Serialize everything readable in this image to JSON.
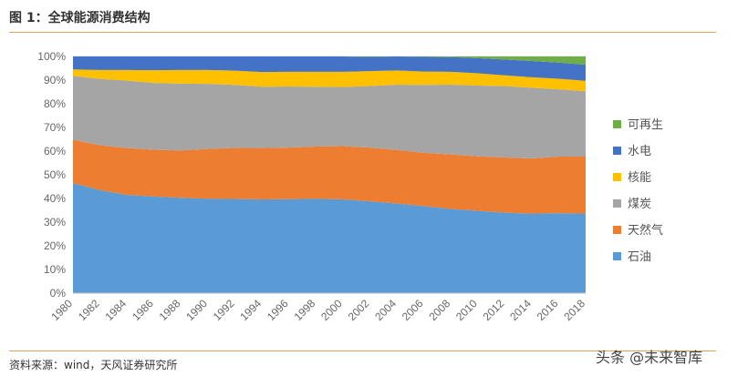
{
  "header": {
    "title": "图 1：全球能源消费结构"
  },
  "footer": {
    "source": "资料来源：wind，天风证券研究所",
    "watermark": "头条 @未来智库"
  },
  "chart_data": {
    "type": "area",
    "stacked": true,
    "percent": true,
    "x": [
      1980,
      1982,
      1984,
      1986,
      1988,
      1990,
      1992,
      1994,
      1996,
      1998,
      2000,
      2002,
      2004,
      2006,
      2008,
      2010,
      2012,
      2014,
      2016,
      2018
    ],
    "xtick_labels": [
      "1980",
      "1982",
      "1984",
      "1986",
      "1988",
      "1990",
      "1992",
      "1994",
      "1996",
      "1998",
      "2000",
      "2002",
      "2004",
      "2006",
      "2008",
      "2010",
      "2012",
      "2014",
      "2016",
      "2018"
    ],
    "ylim": [
      0,
      100
    ],
    "ytick_labels": [
      "0%",
      "10%",
      "20%",
      "30%",
      "40%",
      "50%",
      "60%",
      "70%",
      "80%",
      "90%",
      "100%"
    ],
    "grid": true,
    "legend_position": "right",
    "series": [
      {
        "name": "石油",
        "color": "#5b9bd5",
        "values": [
          46.5,
          43.5,
          41.5,
          40.8,
          40.3,
          39.9,
          39.8,
          39.6,
          39.7,
          39.9,
          39.6,
          38.8,
          37.9,
          36.8,
          35.6,
          34.8,
          34.0,
          33.6,
          33.8,
          33.6
        ]
      },
      {
        "name": "天然气",
        "color": "#ed7d31",
        "values": [
          18.3,
          19.0,
          19.8,
          19.8,
          20.0,
          21.0,
          21.6,
          21.7,
          21.8,
          22.0,
          22.5,
          22.7,
          22.6,
          22.5,
          23.0,
          23.0,
          23.3,
          23.3,
          23.9,
          24.1
        ]
      },
      {
        "name": "煤炭",
        "color": "#a5a5a5",
        "values": [
          27.0,
          28.0,
          28.5,
          28.2,
          28.2,
          27.5,
          26.6,
          25.9,
          25.8,
          25.3,
          25.0,
          26.0,
          27.6,
          28.7,
          29.5,
          29.9,
          30.2,
          29.9,
          28.4,
          27.6
        ]
      },
      {
        "name": "核能",
        "color": "#ffc000",
        "values": [
          2.7,
          3.8,
          4.5,
          5.4,
          5.8,
          5.9,
          6.0,
          6.2,
          6.2,
          6.3,
          6.4,
          6.3,
          6.0,
          5.6,
          5.4,
          5.2,
          4.5,
          4.4,
          4.5,
          4.4
        ]
      },
      {
        "name": "水电",
        "color": "#4472c4",
        "values": [
          5.5,
          5.7,
          5.7,
          5.8,
          5.7,
          5.7,
          6.0,
          6.6,
          6.5,
          6.5,
          6.5,
          6.0,
          5.9,
          6.2,
          6.2,
          6.4,
          6.7,
          6.9,
          6.8,
          6.8
        ]
      },
      {
        "name": "可再生",
        "color": "#70ad47",
        "values": [
          0.0,
          0.0,
          0.0,
          0.0,
          0.0,
          0.0,
          0.0,
          0.0,
          0.0,
          0.0,
          0.0,
          0.2,
          0.0,
          0.2,
          0.3,
          0.7,
          1.3,
          1.9,
          2.6,
          3.5
        ]
      }
    ]
  }
}
